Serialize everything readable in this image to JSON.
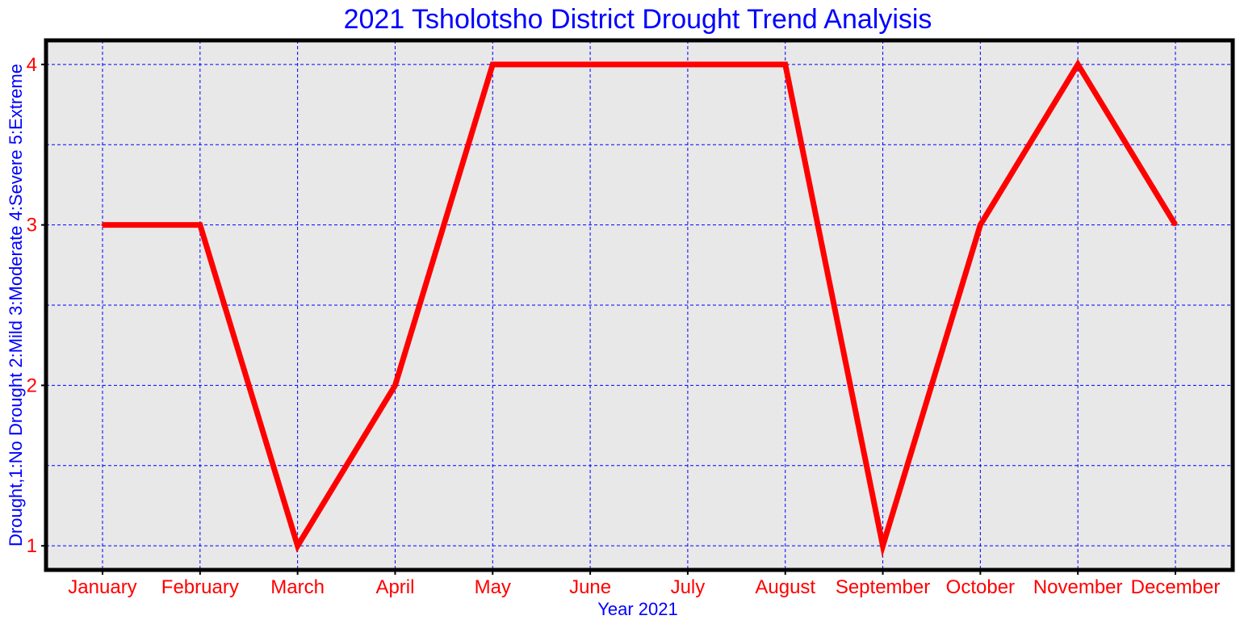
{
  "chart_data": {
    "type": "line",
    "title": "2021 Tsholotsho District Drought Trend Analyisis",
    "xlabel": "Year 2021",
    "ylabel": "Drought,1:No Drought 2:Mild 3:Moderate 4:Severe 5:Extreme",
    "categories": [
      "January",
      "February",
      "March",
      "April",
      "May",
      "June",
      "July",
      "August",
      "September",
      "October",
      "November",
      "December"
    ],
    "series": [
      {
        "values": [
          3,
          3,
          1,
          2,
          4,
          4,
          4,
          4,
          1,
          3,
          4,
          3
        ]
      }
    ],
    "yticks": [
      "1",
      "2",
      "3",
      "4"
    ],
    "ylim": [
      0.85,
      4.15
    ],
    "ytick_values": [
      1,
      2,
      3,
      4
    ],
    "ygrid_values": [
      1,
      1.5,
      2,
      2.5,
      3,
      3.5,
      4
    ],
    "grid": true,
    "colors": {
      "line": "#ff0000",
      "grid": "#0000ff",
      "plot_background": "#e8e8e8",
      "frame": "#000000",
      "title": "#0000ff",
      "axis_label": "#0000ff",
      "tick_label": "#ff0000"
    }
  }
}
